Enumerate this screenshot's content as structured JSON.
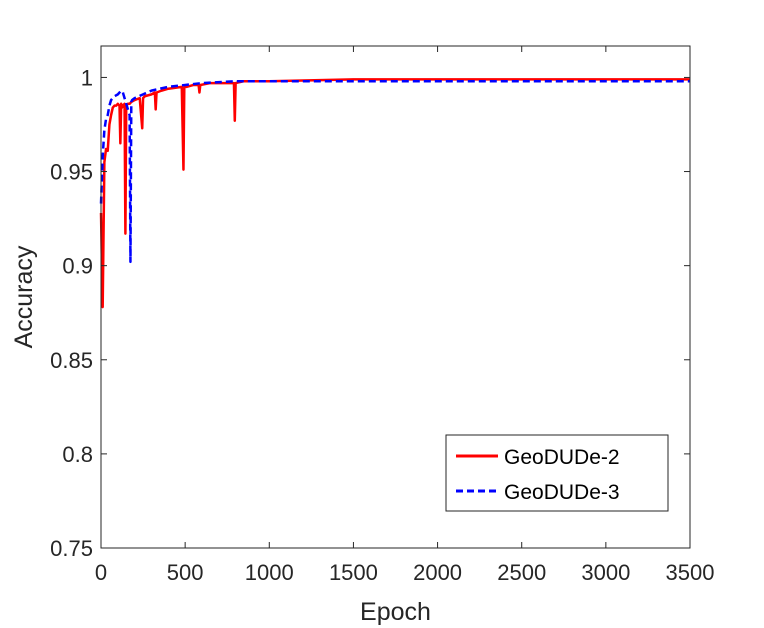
{
  "chart_data": {
    "type": "line",
    "title": "",
    "xlabel": "Epoch",
    "ylabel": "Accuracy",
    "xlim": [
      0,
      3500
    ],
    "ylim": [
      0.75,
      1.0167
    ],
    "xticks": [
      0,
      500,
      1000,
      1500,
      2000,
      2500,
      3000,
      3500
    ],
    "yticks": [
      0.75,
      0.8,
      0.85,
      0.9,
      0.95,
      1
    ],
    "xtick_labels": [
      "0",
      "500",
      "1000",
      "1500",
      "2000",
      "2500",
      "3000",
      "3500"
    ],
    "ytick_labels": [
      "0.75",
      "0.8",
      "0.85",
      "0.9",
      "0.95",
      "1"
    ],
    "grid": false,
    "legend_position": "bottom-right",
    "series": [
      {
        "name": "GeoDUDe-2",
        "color": "#ff0000",
        "style": "solid",
        "x": [
          0,
          10,
          20,
          30,
          40,
          50,
          60,
          70,
          80,
          90,
          100,
          110,
          115,
          120,
          125,
          130,
          140,
          145,
          150,
          160,
          170,
          180,
          200,
          230,
          245,
          250,
          260,
          300,
          320,
          325,
          330,
          360,
          400,
          480,
          490,
          495,
          500,
          510,
          550,
          580,
          585,
          590,
          650,
          700,
          790,
          795,
          800,
          850,
          1000,
          1500,
          2000,
          2500,
          3000,
          3500
        ],
        "y": [
          0.928,
          0.878,
          0.955,
          0.962,
          0.961,
          0.975,
          0.98,
          0.984,
          0.985,
          0.985,
          0.986,
          0.985,
          0.965,
          0.986,
          0.984,
          0.985,
          0.986,
          0.917,
          0.985,
          0.986,
          0.986,
          0.987,
          0.988,
          0.989,
          0.973,
          0.989,
          0.99,
          0.991,
          0.992,
          0.983,
          0.992,
          0.993,
          0.994,
          0.995,
          0.951,
          0.995,
          0.995,
          0.995,
          0.996,
          0.996,
          0.992,
          0.996,
          0.997,
          0.997,
          0.997,
          0.977,
          0.997,
          0.998,
          0.998,
          0.999,
          0.999,
          0.999,
          0.999,
          0.999
        ]
      },
      {
        "name": "GeoDUDe-3",
        "color": "#0000ff",
        "style": "dashed",
        "x": [
          0,
          10,
          20,
          30,
          40,
          50,
          60,
          80,
          100,
          120,
          130,
          150,
          170,
          175,
          180,
          185,
          200,
          250,
          300,
          400,
          500,
          600,
          800,
          1000,
          1500,
          2000,
          2500,
          3000,
          3500
        ],
        "y": [
          0.933,
          0.958,
          0.972,
          0.978,
          0.98,
          0.985,
          0.988,
          0.99,
          0.991,
          0.993,
          0.992,
          0.986,
          0.98,
          0.902,
          0.987,
          0.988,
          0.989,
          0.991,
          0.993,
          0.995,
          0.996,
          0.997,
          0.998,
          0.998,
          0.998,
          0.998,
          0.998,
          0.998,
          0.998
        ]
      }
    ]
  }
}
